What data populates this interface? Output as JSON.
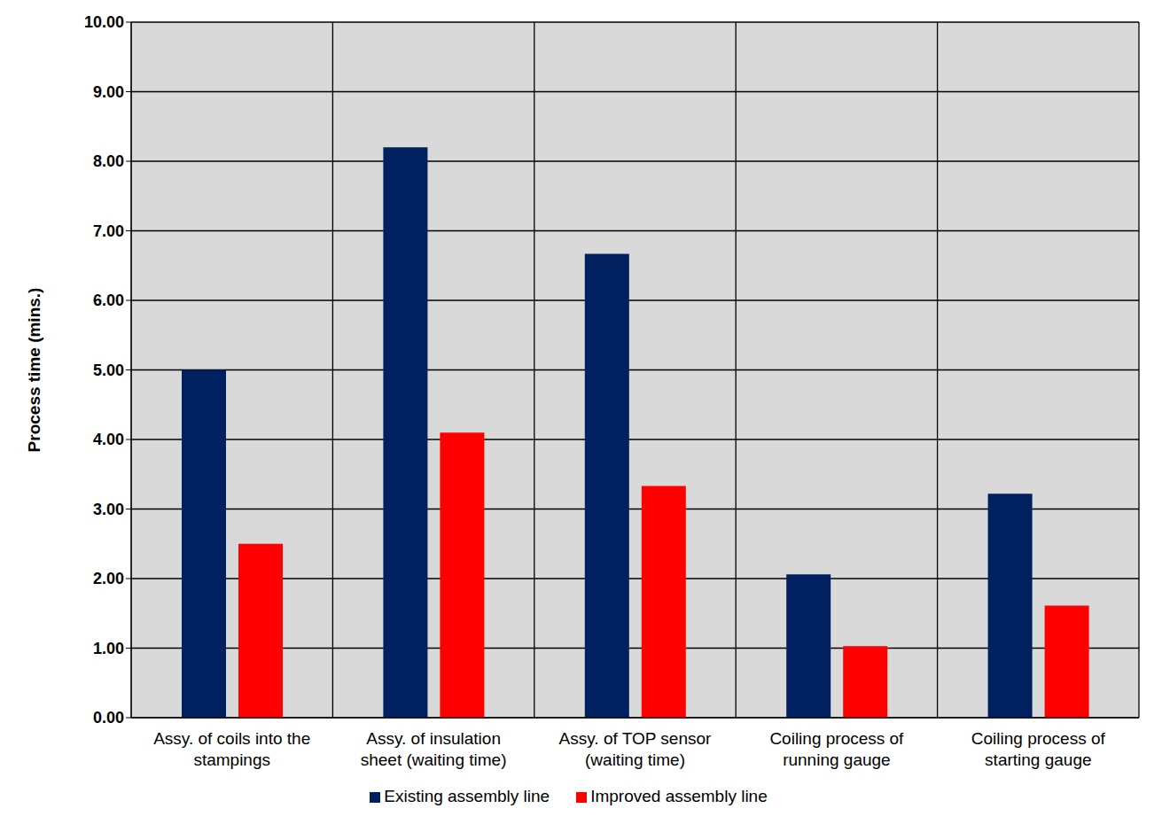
{
  "chart_data": {
    "type": "bar",
    "categories": [
      "Assy. of coils into the stampings",
      "Assy. of insulation sheet (waiting time)",
      "Assy. of TOP sensor (waiting time)",
      "Coiling process of running gauge",
      "Coiling process of starting gauge"
    ],
    "series": [
      {
        "name": "Existing assembly line",
        "color": "#002060",
        "values": [
          5.0,
          8.2,
          6.67,
          2.06,
          3.22
        ]
      },
      {
        "name": "Improved assembly line",
        "color": "#ff0000",
        "values": [
          2.5,
          4.1,
          3.33,
          1.03,
          1.61
        ]
      }
    ],
    "ylabel": "Process time (mins.)",
    "ylim": [
      0,
      10
    ],
    "yticks": [
      {
        "value": 0,
        "label": "0.00"
      },
      {
        "value": 1,
        "label": "1.00"
      },
      {
        "value": 2,
        "label": "2.00"
      },
      {
        "value": 3,
        "label": "3.00"
      },
      {
        "value": 4,
        "label": "4.00"
      },
      {
        "value": 5,
        "label": "5.00"
      },
      {
        "value": 6,
        "label": "6.00"
      },
      {
        "value": 7,
        "label": "7.00"
      },
      {
        "value": 8,
        "label": "8.00"
      },
      {
        "value": 9,
        "label": "9.00"
      },
      {
        "value": 10,
        "label": "10.00"
      }
    ],
    "grid": true,
    "legend": "bottom"
  }
}
